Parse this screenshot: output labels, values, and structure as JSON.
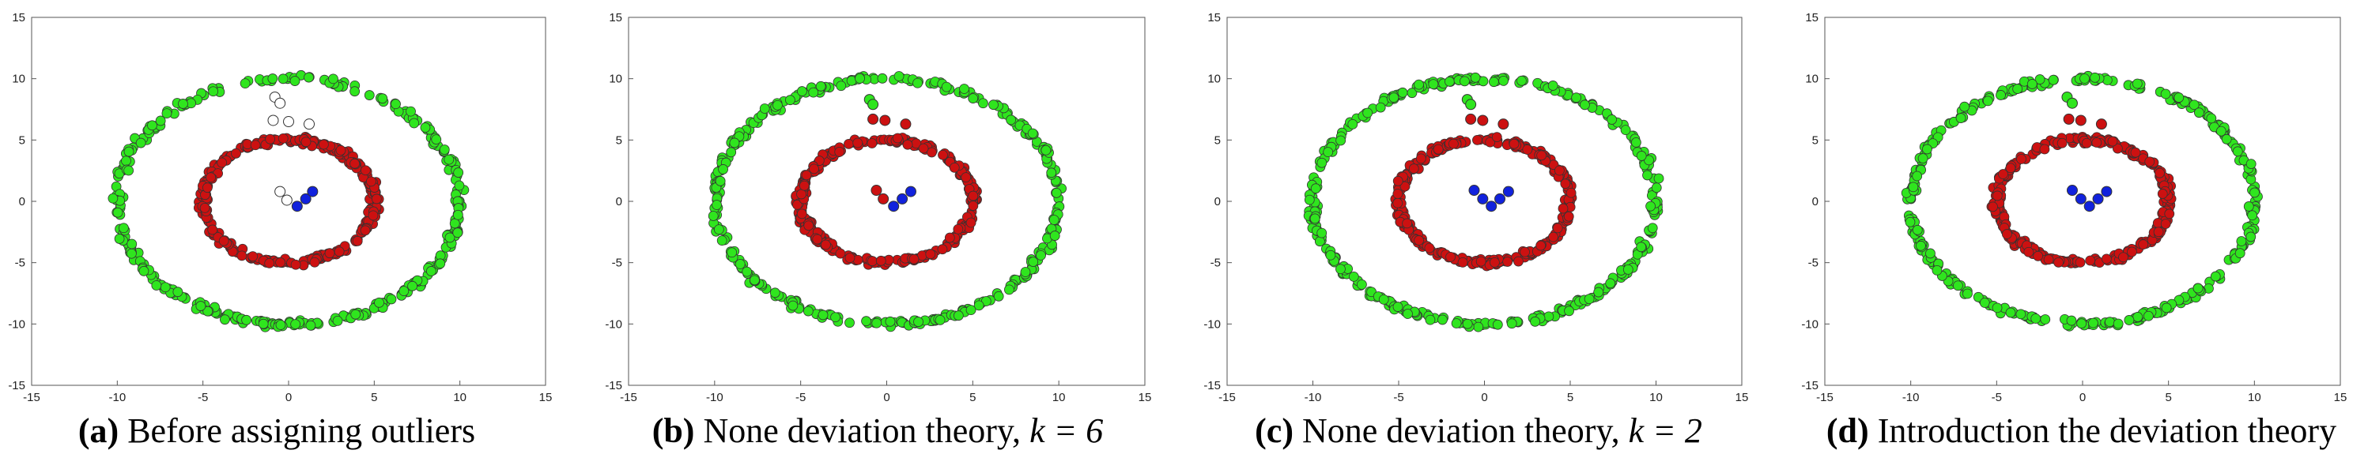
{
  "colors": {
    "outer": "#2fe51e",
    "inner": "#cc1111",
    "center": "#1122dd",
    "unassigned": "#ffffff",
    "stroke": "#333333"
  },
  "captions": [
    {
      "label": "(a)",
      "text": " Before assigning outliers",
      "suffix": ""
    },
    {
      "label": "(b)",
      "text": " None deviation theory, ",
      "suffix": "k = 6"
    },
    {
      "label": "(c)",
      "text": " None deviation theory, ",
      "suffix": "k = 2"
    },
    {
      "label": "(d)",
      "text": " Introduction the deviation theory",
      "suffix": ""
    }
  ],
  "chart_data": [
    {
      "type": "scatter",
      "title": "(a) Before assigning outliers",
      "xlim": [
        -15,
        15
      ],
      "ylim": [
        -15,
        15
      ],
      "xticks": [
        -15,
        -10,
        -5,
        0,
        5,
        10,
        15
      ],
      "yticks": [
        -15,
        -10,
        -5,
        0,
        5,
        10,
        15
      ],
      "rings": [
        {
          "name": "outer",
          "radius": 10,
          "count": 320,
          "color": "outer"
        },
        {
          "name": "inner",
          "radius": 5,
          "count": 280,
          "color": "inner"
        }
      ],
      "points": [
        {
          "x": -0.8,
          "y": 8.5,
          "color": "unassigned"
        },
        {
          "x": -0.5,
          "y": 8.0,
          "color": "unassigned"
        },
        {
          "x": -0.9,
          "y": 6.6,
          "color": "unassigned"
        },
        {
          "x": 0.0,
          "y": 6.5,
          "color": "unassigned"
        },
        {
          "x": 1.2,
          "y": 6.3,
          "color": "unassigned"
        },
        {
          "x": -0.5,
          "y": 0.8,
          "color": "unassigned"
        },
        {
          "x": -0.1,
          "y": 0.1,
          "color": "unassigned"
        },
        {
          "x": 0.5,
          "y": -0.4,
          "color": "center"
        },
        {
          "x": 1.0,
          "y": 0.2,
          "color": "center"
        },
        {
          "x": 1.4,
          "y": 0.8,
          "color": "center"
        }
      ]
    },
    {
      "type": "scatter",
      "title": "(b) None deviation theory, k = 6",
      "xlim": [
        -15,
        15
      ],
      "ylim": [
        -15,
        15
      ],
      "xticks": [
        -15,
        -10,
        -5,
        0,
        5,
        10,
        15
      ],
      "yticks": [
        -15,
        -10,
        -5,
        0,
        5,
        10,
        15
      ],
      "rings": [
        {
          "name": "outer",
          "radius": 10,
          "count": 320,
          "color": "outer"
        },
        {
          "name": "inner",
          "radius": 5,
          "count": 280,
          "color": "inner"
        }
      ],
      "points": [
        {
          "x": -1.0,
          "y": 8.3,
          "color": "outer"
        },
        {
          "x": -0.8,
          "y": 7.9,
          "color": "outer"
        },
        {
          "x": -0.8,
          "y": 6.7,
          "color": "inner"
        },
        {
          "x": -0.1,
          "y": 6.6,
          "color": "inner"
        },
        {
          "x": 1.1,
          "y": 6.3,
          "color": "inner"
        },
        {
          "x": -0.6,
          "y": 0.9,
          "color": "inner"
        },
        {
          "x": -0.2,
          "y": 0.2,
          "color": "inner"
        },
        {
          "x": 0.4,
          "y": -0.4,
          "color": "center"
        },
        {
          "x": 0.9,
          "y": 0.2,
          "color": "center"
        },
        {
          "x": 1.4,
          "y": 0.8,
          "color": "center"
        }
      ]
    },
    {
      "type": "scatter",
      "title": "(c) None deviation theory, k = 2",
      "xlim": [
        -15,
        15
      ],
      "ylim": [
        -15,
        15
      ],
      "xticks": [
        -15,
        -10,
        -5,
        0,
        5,
        10,
        15
      ],
      "yticks": [
        -15,
        -10,
        -5,
        0,
        5,
        10,
        15
      ],
      "rings": [
        {
          "name": "outer",
          "radius": 10,
          "count": 320,
          "color": "outer"
        },
        {
          "name": "inner",
          "radius": 5,
          "count": 280,
          "color": "inner"
        }
      ],
      "points": [
        {
          "x": -1.0,
          "y": 8.3,
          "color": "outer"
        },
        {
          "x": -0.8,
          "y": 7.9,
          "color": "outer"
        },
        {
          "x": -0.8,
          "y": 6.7,
          "color": "inner"
        },
        {
          "x": -0.1,
          "y": 6.6,
          "color": "inner"
        },
        {
          "x": 1.1,
          "y": 6.3,
          "color": "inner"
        },
        {
          "x": -0.6,
          "y": 0.9,
          "color": "center"
        },
        {
          "x": -0.1,
          "y": 0.2,
          "color": "center"
        },
        {
          "x": 0.4,
          "y": -0.4,
          "color": "center"
        },
        {
          "x": 0.9,
          "y": 0.2,
          "color": "center"
        },
        {
          "x": 1.4,
          "y": 0.8,
          "color": "center"
        }
      ]
    },
    {
      "type": "scatter",
      "title": "(d) Introduction the deviation theory",
      "xlim": [
        -15,
        15
      ],
      "ylim": [
        -15,
        15
      ],
      "xticks": [
        -15,
        -10,
        -5,
        0,
        5,
        10,
        15
      ],
      "yticks": [
        -15,
        -10,
        -5,
        0,
        5,
        10,
        15
      ],
      "rings": [
        {
          "name": "outer",
          "radius": 10,
          "count": 320,
          "color": "outer"
        },
        {
          "name": "inner",
          "radius": 5,
          "count": 280,
          "color": "inner"
        }
      ],
      "points": [
        {
          "x": -0.9,
          "y": 8.5,
          "color": "outer"
        },
        {
          "x": -0.6,
          "y": 8.0,
          "color": "outer"
        },
        {
          "x": -0.8,
          "y": 6.7,
          "color": "inner"
        },
        {
          "x": -0.1,
          "y": 6.6,
          "color": "inner"
        },
        {
          "x": 1.1,
          "y": 6.3,
          "color": "inner"
        },
        {
          "x": -0.6,
          "y": 0.9,
          "color": "center"
        },
        {
          "x": -0.1,
          "y": 0.2,
          "color": "center"
        },
        {
          "x": 0.4,
          "y": -0.4,
          "color": "center"
        },
        {
          "x": 0.9,
          "y": 0.2,
          "color": "center"
        },
        {
          "x": 1.4,
          "y": 0.8,
          "color": "center"
        }
      ]
    }
  ]
}
